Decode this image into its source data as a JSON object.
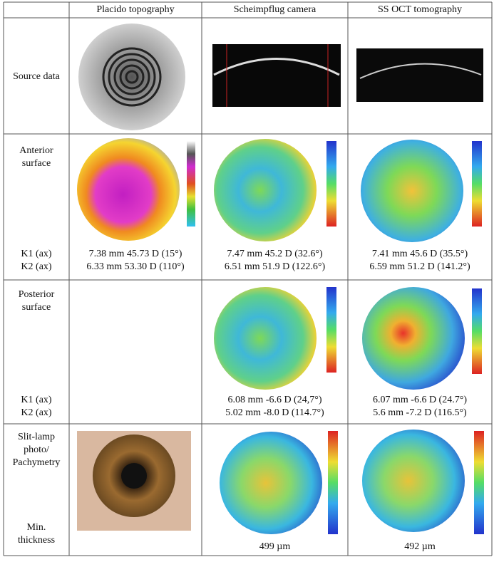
{
  "table": {
    "header": [
      "Placido topography",
      "Scheimpflug camera",
      "SS OCT tomography"
    ],
    "rows": [
      {
        "label": "Source data"
      },
      {
        "label": "Anterior surface",
        "k_labels": [
          "K1 (ax)",
          "K2 (ax)"
        ],
        "placido": [
          "7.38 mm 45.73 D (15°)",
          "6.33 mm 53.30 D (110°)"
        ],
        "scheimpflug": [
          "7.47 mm 45.2 D (32.6°)",
          "6.51 mm 51.9 D (122.6°)"
        ],
        "oct": [
          "7.41 mm 45.6 D (35.5°)",
          "6.59 mm 51.2 D (141.2°)"
        ]
      },
      {
        "label": "Posterior surface",
        "k_labels": [
          "K1 (ax)",
          "K2 (ax)"
        ],
        "scheimpflug": [
          "6.08 mm -6.6 D (24,7°)",
          "5.02 mm -8.0 D (114.7°)"
        ],
        "oct": [
          "6.07 mm -6.6 D (24.7°)",
          "5.6 mm -7.2 D (116.5°)"
        ]
      },
      {
        "label": "Slit-lamp photo/ Pachymetry",
        "sub_label": "Min. thickness",
        "scheimpflug": "499 µm",
        "oct": "492 µm"
      }
    ]
  }
}
